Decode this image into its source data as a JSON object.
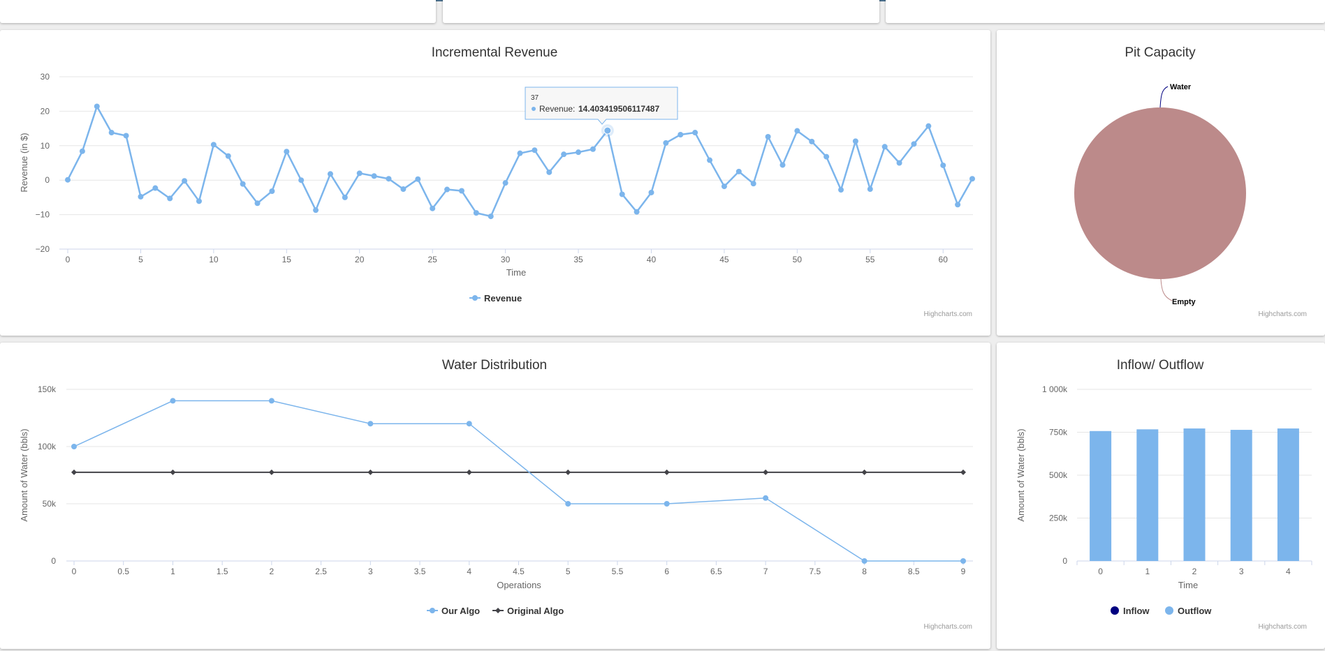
{
  "colors": {
    "series_blue": "#7cb5ec",
    "series_dark": "#434348",
    "inflow_navy": "#000080",
    "pie_fill": "#bc8a8a",
    "pie_water_connector": "#000080",
    "pie_empty_connector": "#bc8a8a"
  },
  "credit": "Highcharts.com",
  "chart_data": [
    {
      "id": "incremental_revenue",
      "type": "line",
      "title": "Incremental Revenue",
      "xlabel": "Time",
      "ylabel": "Revenue (in $)",
      "xlim": [
        0,
        62
      ],
      "ylim": [
        -20,
        30
      ],
      "x_ticks": [
        0,
        5,
        10,
        15,
        20,
        25,
        30,
        35,
        40,
        45,
        50,
        55,
        60
      ],
      "y_ticks": [
        30,
        20,
        10,
        0,
        -10,
        -20
      ],
      "y_tick_labels": [
        "30",
        "20",
        "10",
        "0",
        "−10",
        "−20"
      ],
      "legend": [
        "Revenue"
      ],
      "series": [
        {
          "name": "Revenue",
          "x": [
            0,
            1,
            2,
            3,
            4,
            5,
            6,
            7,
            8,
            9,
            10,
            11,
            12,
            13,
            14,
            15,
            16,
            17,
            18,
            19,
            20,
            21,
            22,
            23,
            24,
            25,
            26,
            27,
            28,
            29,
            30,
            31,
            32,
            33,
            34,
            35,
            36,
            37,
            38,
            39,
            40,
            41,
            42,
            43,
            44,
            45,
            46,
            47,
            48,
            49,
            50,
            51,
            52,
            53,
            54,
            55,
            56,
            57,
            58,
            59,
            60,
            61,
            62
          ],
          "values": [
            0.1,
            8.4,
            21.4,
            13.8,
            12.9,
            -4.8,
            -2.3,
            -5.3,
            -0.2,
            -6.1,
            10.3,
            7.0,
            -1.1,
            -6.7,
            -3.2,
            8.3,
            0.0,
            -8.7,
            1.8,
            -5.0,
            2.0,
            1.2,
            0.4,
            -2.6,
            0.3,
            -8.2,
            -2.7,
            -3.1,
            -9.5,
            -10.5,
            -0.8,
            7.8,
            8.7,
            2.3,
            7.5,
            8.1,
            9.0,
            14.4,
            -4.1,
            -9.2,
            -3.6,
            10.8,
            13.2,
            13.8,
            5.8,
            -1.8,
            2.5,
            -1.0,
            12.6,
            4.4,
            14.3,
            11.2,
            6.8,
            -2.8,
            11.3,
            -2.6,
            9.7,
            5.0,
            10.5,
            15.7,
            4.3,
            -7.1,
            0.4
          ]
        }
      ],
      "tooltip": {
        "x": 37,
        "header": "37",
        "series_label": "Revenue:",
        "value": "14.403419506117487"
      }
    },
    {
      "id": "pit_capacity",
      "type": "pie",
      "title": "Pit Capacity",
      "slices": [
        {
          "name": "Water",
          "value": 0
        },
        {
          "name": "Empty",
          "value": 100
        }
      ]
    },
    {
      "id": "water_distribution",
      "type": "line",
      "title": "Water Distribution",
      "xlabel": "Operations",
      "ylabel": "Amount of Water (bbls)",
      "xlim": [
        0,
        9
      ],
      "ylim": [
        0,
        150000
      ],
      "x_ticks": [
        0,
        0.5,
        1,
        1.5,
        2,
        2.5,
        3,
        3.5,
        4,
        4.5,
        5,
        5.5,
        6,
        6.5,
        7,
        7.5,
        8,
        8.5,
        9
      ],
      "y_ticks": [
        150000,
        100000,
        50000,
        0
      ],
      "y_tick_labels": [
        "150k",
        "100k",
        "50k",
        "0"
      ],
      "legend": [
        "Our Algo",
        "Original Algo"
      ],
      "x": [
        0,
        1,
        2,
        3,
        4,
        5,
        6,
        7,
        8,
        9
      ],
      "series": [
        {
          "name": "Our Algo",
          "values": [
            100000,
            140000,
            140000,
            120000,
            120000,
            50000,
            50000,
            55000,
            0,
            0
          ]
        },
        {
          "name": "Original Algo",
          "values": [
            77500,
            77500,
            77500,
            77500,
            77500,
            77500,
            77500,
            77500,
            77500,
            77500
          ]
        }
      ]
    },
    {
      "id": "inflow_outflow",
      "type": "bar",
      "title": "Inflow/ Outflow",
      "xlabel": "Time",
      "ylabel": "Amount of Water (bbls)",
      "ylim": [
        0,
        1000000
      ],
      "categories": [
        "0",
        "1",
        "2",
        "3",
        "4"
      ],
      "y_ticks": [
        1000000,
        750000,
        500000,
        250000,
        0
      ],
      "y_tick_labels": [
        "1 000k",
        "750k",
        "500k",
        "250k",
        "0"
      ],
      "legend": [
        "Inflow",
        "Outflow"
      ],
      "series": [
        {
          "name": "Inflow",
          "values": [
            0,
            0,
            0,
            0,
            0
          ]
        },
        {
          "name": "Outflow",
          "values": [
            757000,
            767000,
            772000,
            764000,
            772000
          ]
        }
      ]
    }
  ]
}
